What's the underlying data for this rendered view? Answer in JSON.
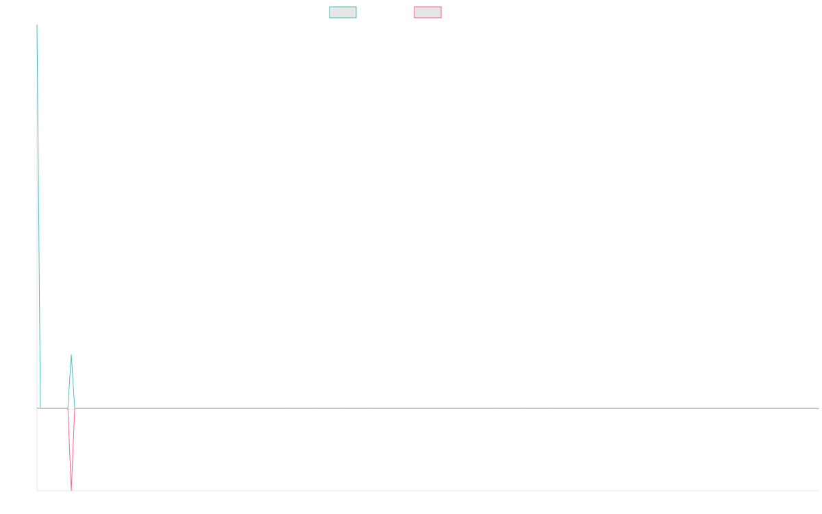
{
  "chart_data": {
    "type": "line",
    "title": "",
    "xlabel": "",
    "ylabel": "",
    "x": [
      0,
      1,
      2,
      3,
      4,
      5,
      6,
      7,
      8,
      9,
      10,
      11,
      12,
      13,
      14,
      15,
      16,
      17,
      18,
      19,
      20,
      21,
      22,
      23,
      24,
      25,
      26,
      27,
      28,
      29,
      30,
      31,
      32,
      33,
      34,
      35,
      36,
      37,
      38,
      39,
      40,
      41,
      42,
      43,
      44,
      45,
      46,
      47,
      48,
      49,
      50,
      51,
      52,
      53,
      54,
      55,
      56,
      57,
      58,
      59,
      60,
      61,
      62,
      63,
      64,
      65,
      66,
      67,
      68,
      69,
      70,
      71,
      72,
      73,
      74,
      75,
      76,
      77,
      78,
      79,
      80,
      81,
      82,
      83,
      84,
      85,
      86,
      87,
      88,
      89,
      90,
      91,
      92,
      93,
      94,
      95,
      96,
      97,
      98,
      99,
      100,
      101,
      102,
      103,
      104,
      105,
      106,
      107,
      108,
      109,
      110,
      111,
      112,
      113,
      114,
      115,
      116,
      117,
      118,
      119,
      120,
      121,
      122,
      123,
      124,
      125,
      126,
      127,
      128,
      129,
      130,
      131,
      132,
      133,
      134,
      135,
      136,
      137,
      138,
      139,
      140,
      141,
      142,
      143,
      144,
      145,
      146,
      147,
      148,
      149,
      150,
      151,
      152,
      153,
      154,
      155,
      156,
      157,
      158,
      159,
      160,
      161,
      162,
      163,
      164,
      165,
      166,
      167,
      168,
      169,
      170,
      171,
      172,
      173,
      174,
      175,
      176,
      177,
      178,
      179,
      180,
      181,
      182,
      183,
      184,
      185,
      186,
      187,
      188,
      189,
      190,
      191,
      192,
      193,
      194,
      195,
      196,
      197,
      198,
      199,
      200,
      201,
      202,
      203,
      204,
      205,
      206,
      207,
      208,
      209,
      210,
      211,
      212,
      213,
      214,
      215,
      216,
      217,
      218,
      219,
      220,
      221,
      222,
      223,
      224,
      225,
      226,
      227,
      228
    ],
    "xlim": [
      0,
      228
    ],
    "ylim": [
      -100,
      465
    ],
    "grid": false,
    "legend": {
      "position": "top",
      "show_labels": false
    },
    "series": [
      {
        "color": "#4bc0c0",
        "values": [
          465,
          0,
          0,
          0,
          0,
          0,
          0,
          0,
          0,
          0,
          65,
          0,
          0,
          0,
          0,
          0,
          0,
          0,
          0,
          0,
          0,
          0,
          0,
          0,
          0,
          0,
          0,
          0,
          0,
          0,
          0,
          0,
          0,
          0,
          0,
          0,
          0,
          0,
          0,
          0,
          0,
          0,
          0,
          0,
          0,
          0,
          0,
          0,
          0,
          0,
          0,
          0,
          0,
          0,
          0,
          0,
          0,
          0,
          0,
          0,
          0,
          0,
          0,
          0,
          0,
          0,
          0,
          0,
          0,
          0,
          0,
          0,
          0,
          0,
          0,
          0,
          0,
          0,
          0,
          0,
          0,
          0,
          0,
          0,
          0,
          0,
          0,
          0,
          0,
          0,
          0,
          0,
          0,
          0,
          0,
          0,
          0,
          0,
          0,
          0,
          0,
          0,
          0,
          0,
          0,
          0,
          0,
          0,
          0,
          0,
          0,
          0,
          0,
          0,
          0,
          0,
          0,
          0,
          0,
          0,
          0,
          0,
          0,
          0,
          0,
          0,
          0,
          0,
          0,
          0,
          0,
          0,
          0,
          0,
          0,
          0,
          0,
          0,
          0,
          0,
          0,
          0,
          0,
          0,
          0,
          0,
          0,
          0,
          0,
          0,
          0,
          0,
          0,
          0,
          0,
          0,
          0,
          0,
          0,
          0,
          0,
          0,
          0,
          0,
          0,
          0,
          0,
          0,
          0,
          0,
          0,
          0,
          0,
          0,
          0,
          0,
          0,
          0,
          0,
          0,
          0,
          0,
          0,
          0,
          0,
          0,
          0,
          0,
          0,
          0,
          0,
          0,
          0,
          0,
          0,
          0,
          0,
          0,
          0,
          0,
          0,
          0,
          0,
          0,
          0,
          0,
          0,
          0,
          0,
          0,
          0,
          0,
          0,
          0,
          0,
          0,
          0,
          0,
          0,
          0,
          0,
          0,
          0,
          0,
          0,
          0,
          0,
          0,
          0
        ]
      },
      {
        "color": "#ff6384",
        "values": [
          0,
          0,
          0,
          0,
          0,
          0,
          0,
          0,
          0,
          0,
          -100,
          0,
          0,
          0,
          0,
          0,
          0,
          0,
          0,
          0,
          0,
          0,
          0,
          0,
          0,
          0,
          0,
          0,
          0,
          0,
          0,
          0,
          0,
          0,
          0,
          0,
          0,
          0,
          0,
          0,
          0,
          0,
          0,
          0,
          0,
          0,
          0,
          0,
          0,
          0,
          0,
          0,
          0,
          0,
          0,
          0,
          0,
          0,
          0,
          0,
          0,
          0,
          0,
          0,
          0,
          0,
          0,
          0,
          0,
          0,
          0,
          0,
          0,
          0,
          0,
          0,
          0,
          0,
          0,
          0,
          0,
          0,
          0,
          0,
          0,
          0,
          0,
          0,
          0,
          0,
          0,
          0,
          0,
          0,
          0,
          0,
          0,
          0,
          0,
          0,
          0,
          0,
          0,
          0,
          0,
          0,
          0,
          0,
          0,
          0,
          0,
          0,
          0,
          0,
          0,
          0,
          0,
          0,
          0,
          0,
          0,
          0,
          0,
          0,
          0,
          0,
          0,
          0,
          0,
          0,
          0,
          0,
          0,
          0,
          0,
          0,
          0,
          0,
          0,
          0,
          0,
          0,
          0,
          0,
          0,
          0,
          0,
          0,
          0,
          0,
          0,
          0,
          0,
          0,
          0,
          0,
          0,
          0,
          0,
          0,
          0,
          0,
          0,
          0,
          0,
          0,
          0,
          0,
          0,
          0,
          0,
          0,
          0,
          0,
          0,
          0,
          0,
          0,
          0,
          0,
          0,
          0,
          0,
          0,
          0,
          0,
          0,
          0,
          0,
          0,
          0,
          0,
          0,
          0,
          0,
          0,
          0,
          0,
          0,
          0,
          0,
          0,
          0,
          0,
          0,
          0,
          0,
          0,
          0,
          0,
          0,
          0,
          0,
          0,
          0,
          0,
          0,
          0,
          0,
          0,
          0,
          0,
          0,
          0,
          0,
          0,
          0,
          0,
          0
        ]
      }
    ]
  }
}
